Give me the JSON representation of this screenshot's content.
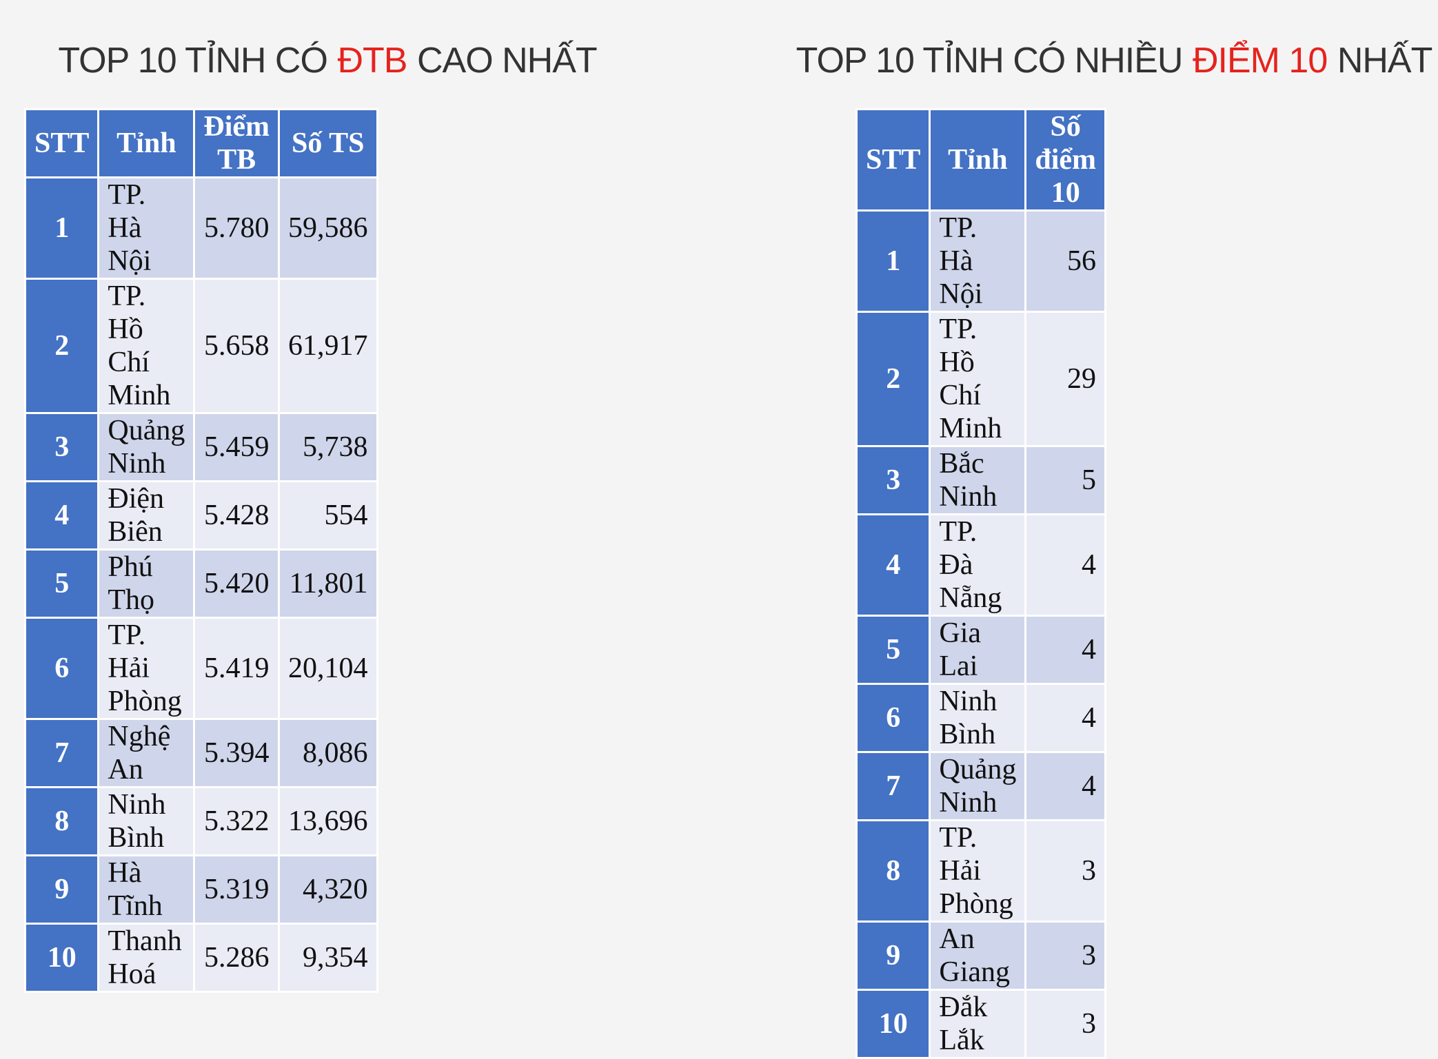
{
  "panels": [
    {
      "title": [
        "TOP 10 TỈNH CÓ",
        "ĐTB",
        "CAO NHẤT"
      ],
      "title_highlight": 1,
      "table": {
        "headers": [
          "STT",
          "Tỉnh",
          "Điểm TB",
          "Số TS"
        ],
        "align": [
          "center",
          "left",
          "center",
          "right"
        ],
        "rows": [
          [
            "1",
            "TP. Hà Nội",
            "5.780",
            "59,586"
          ],
          [
            "2",
            "TP. Hồ Chí Minh",
            "5.658",
            "61,917"
          ],
          [
            "3",
            "Quảng Ninh",
            "5.459",
            "5,738"
          ],
          [
            "4",
            "Điện Biên",
            "5.428",
            "554"
          ],
          [
            "5",
            "Phú Thọ",
            "5.420",
            "11,801"
          ],
          [
            "6",
            "TP. Hải Phòng",
            "5.419",
            "20,104"
          ],
          [
            "7",
            "Nghệ An",
            "5.394",
            "8,086"
          ],
          [
            "8",
            "Ninh Bình",
            "5.322",
            "13,696"
          ],
          [
            "9",
            "Hà Tĩnh",
            "5.319",
            "4,320"
          ],
          [
            "10",
            "Thanh Hoá",
            "5.286",
            "9,354"
          ]
        ]
      }
    },
    {
      "title": [
        "TOP 10 TỈNH CÓ NHIỀU",
        "ĐIỂM 10",
        "NHẤT"
      ],
      "title_highlight": 1,
      "table": {
        "headers": [
          "STT",
          "Tỉnh",
          "Số điểm 10"
        ],
        "align": [
          "center",
          "left",
          "right"
        ],
        "rows": [
          [
            "1",
            "TP. Hà Nội",
            "56"
          ],
          [
            "2",
            "TP. Hồ Chí Minh",
            "29"
          ],
          [
            "3",
            "Bắc Ninh",
            "5"
          ],
          [
            "4",
            "TP. Đà Nẵng",
            "4"
          ],
          [
            "5",
            "Gia Lai",
            "4"
          ],
          [
            "6",
            "Ninh Bình",
            "4"
          ],
          [
            "7",
            "Quảng Ninh",
            "4"
          ],
          [
            "8",
            "TP. Hải Phòng",
            "3"
          ],
          [
            "9",
            "An Giang",
            "3"
          ],
          [
            "10",
            "Đắk Lắk",
            "3"
          ]
        ]
      }
    }
  ]
}
